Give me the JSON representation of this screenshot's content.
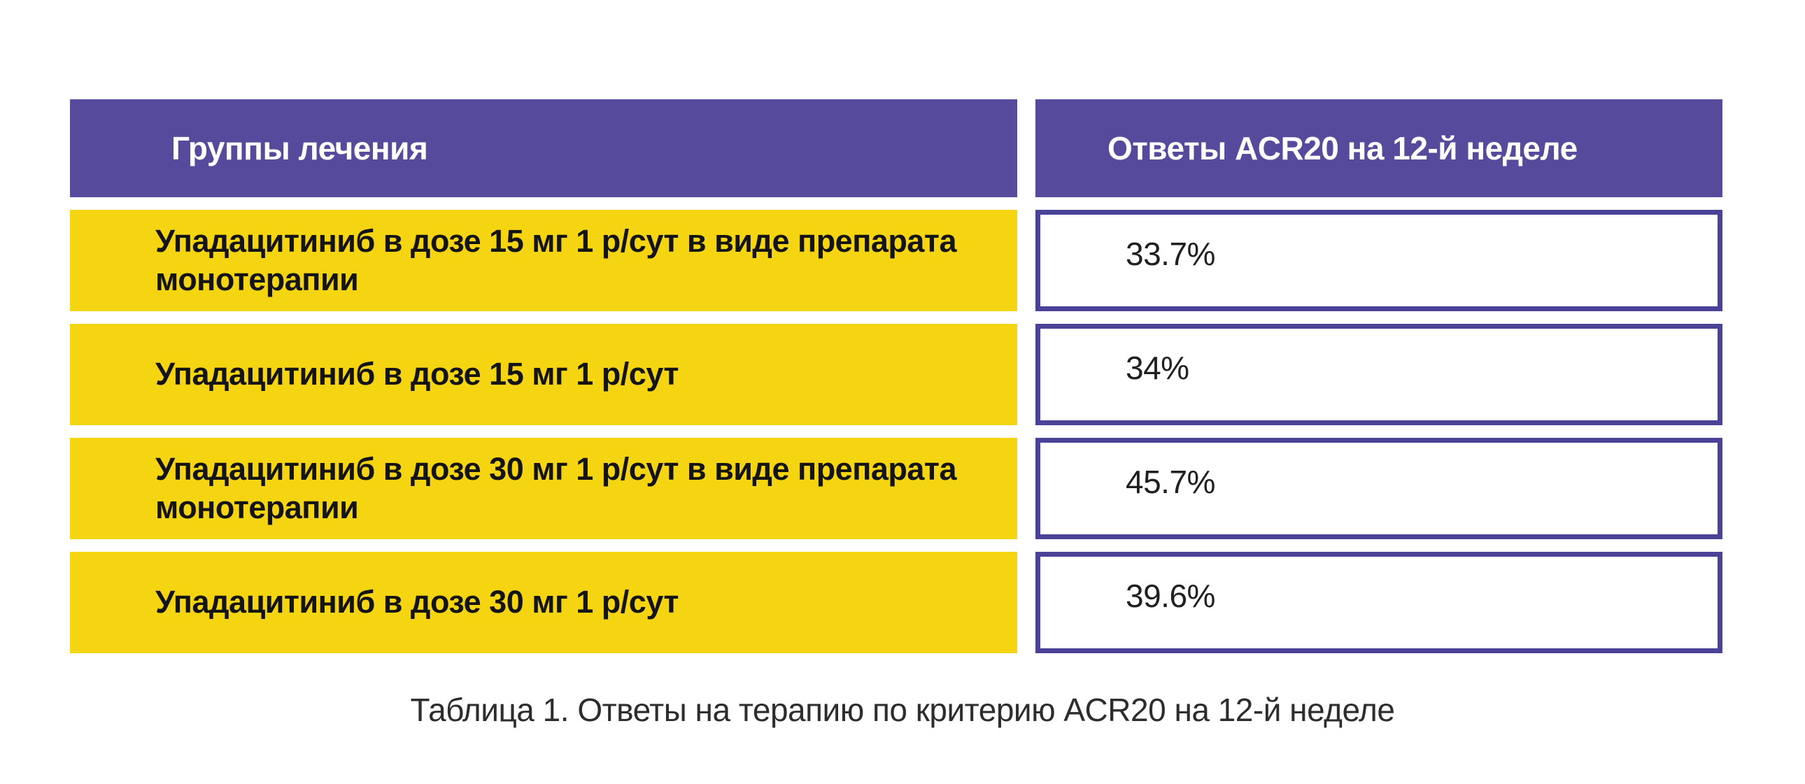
{
  "theme": {
    "purple": "#554A9B",
    "yellow": "#F5D412",
    "border": "#4A4297",
    "header_text": "#FFFFFF",
    "group_text": "#141414",
    "value_text": "#202020",
    "value_bg": "#FFFFFF",
    "caption_text": "#2D2D2D",
    "background": "#FFFFFF"
  },
  "table": {
    "headers": [
      {
        "label": "Группы лечения"
      },
      {
        "label": "Ответы ACR20 на 12-й неделе"
      }
    ],
    "rows": [
      {
        "group": "Упадацитиниб в дозе 15 мг 1 р/сут в виде препарата монотерапии",
        "value": "33.7%"
      },
      {
        "group": "Упадацитиниб в дозе 15 мг 1 р/сут",
        "value": "34%"
      },
      {
        "group": "Упадацитиниб в дозе 30 мг 1 р/сут в виде препарата монотерапии",
        "value": "45.7%"
      },
      {
        "group": "Упадацитиниб в дозе 30 мг 1 р/сут",
        "value": "39.6%"
      }
    ]
  },
  "caption": "Таблица 1. Ответы на терапию по критерию ACR20 на 12-й неделе",
  "chart_data": {
    "type": "table",
    "title": "Таблица 1. Ответы на терапию по критерию ACR20 на 12-й неделе",
    "columns": [
      "Группы лечения",
      "Ответы ACR20 на 12-й неделе"
    ],
    "categories": [
      "Упадацитиниб в дозе 15 мг 1 р/сут в виде препарата монотерапии",
      "Упадацитиниб в дозе 15 мг 1 р/сут",
      "Упадацитиниб в дозе 30 мг 1 р/сут в виде препарата монотерапии",
      "Упадацитиниб в дозе 30 мг 1 р/сут"
    ],
    "values_percent": [
      33.7,
      34,
      45.7,
      39.6
    ]
  }
}
